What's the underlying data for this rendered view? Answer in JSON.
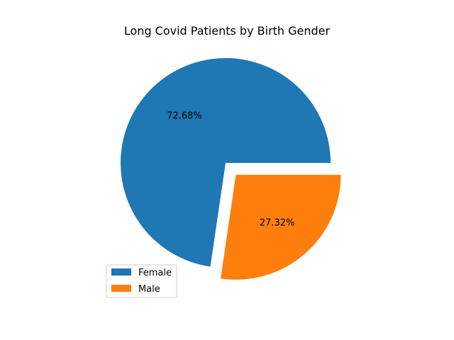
{
  "chart_data": {
    "type": "pie",
    "title": "Long Covid Patients by Birth Gender",
    "slices": [
      {
        "label": "Female",
        "value": 72.68,
        "pct_label": "72.68%",
        "color": "#1f77b4",
        "explode": 0.0
      },
      {
        "label": "Male",
        "value": 27.32,
        "pct_label": "27.32%",
        "color": "#ff7f0e",
        "explode": 0.15
      }
    ],
    "start_angle_deg": 0,
    "direction": "counterclockwise",
    "legend": {
      "position": "lower-left",
      "entries": [
        "Female",
        "Male"
      ]
    }
  }
}
